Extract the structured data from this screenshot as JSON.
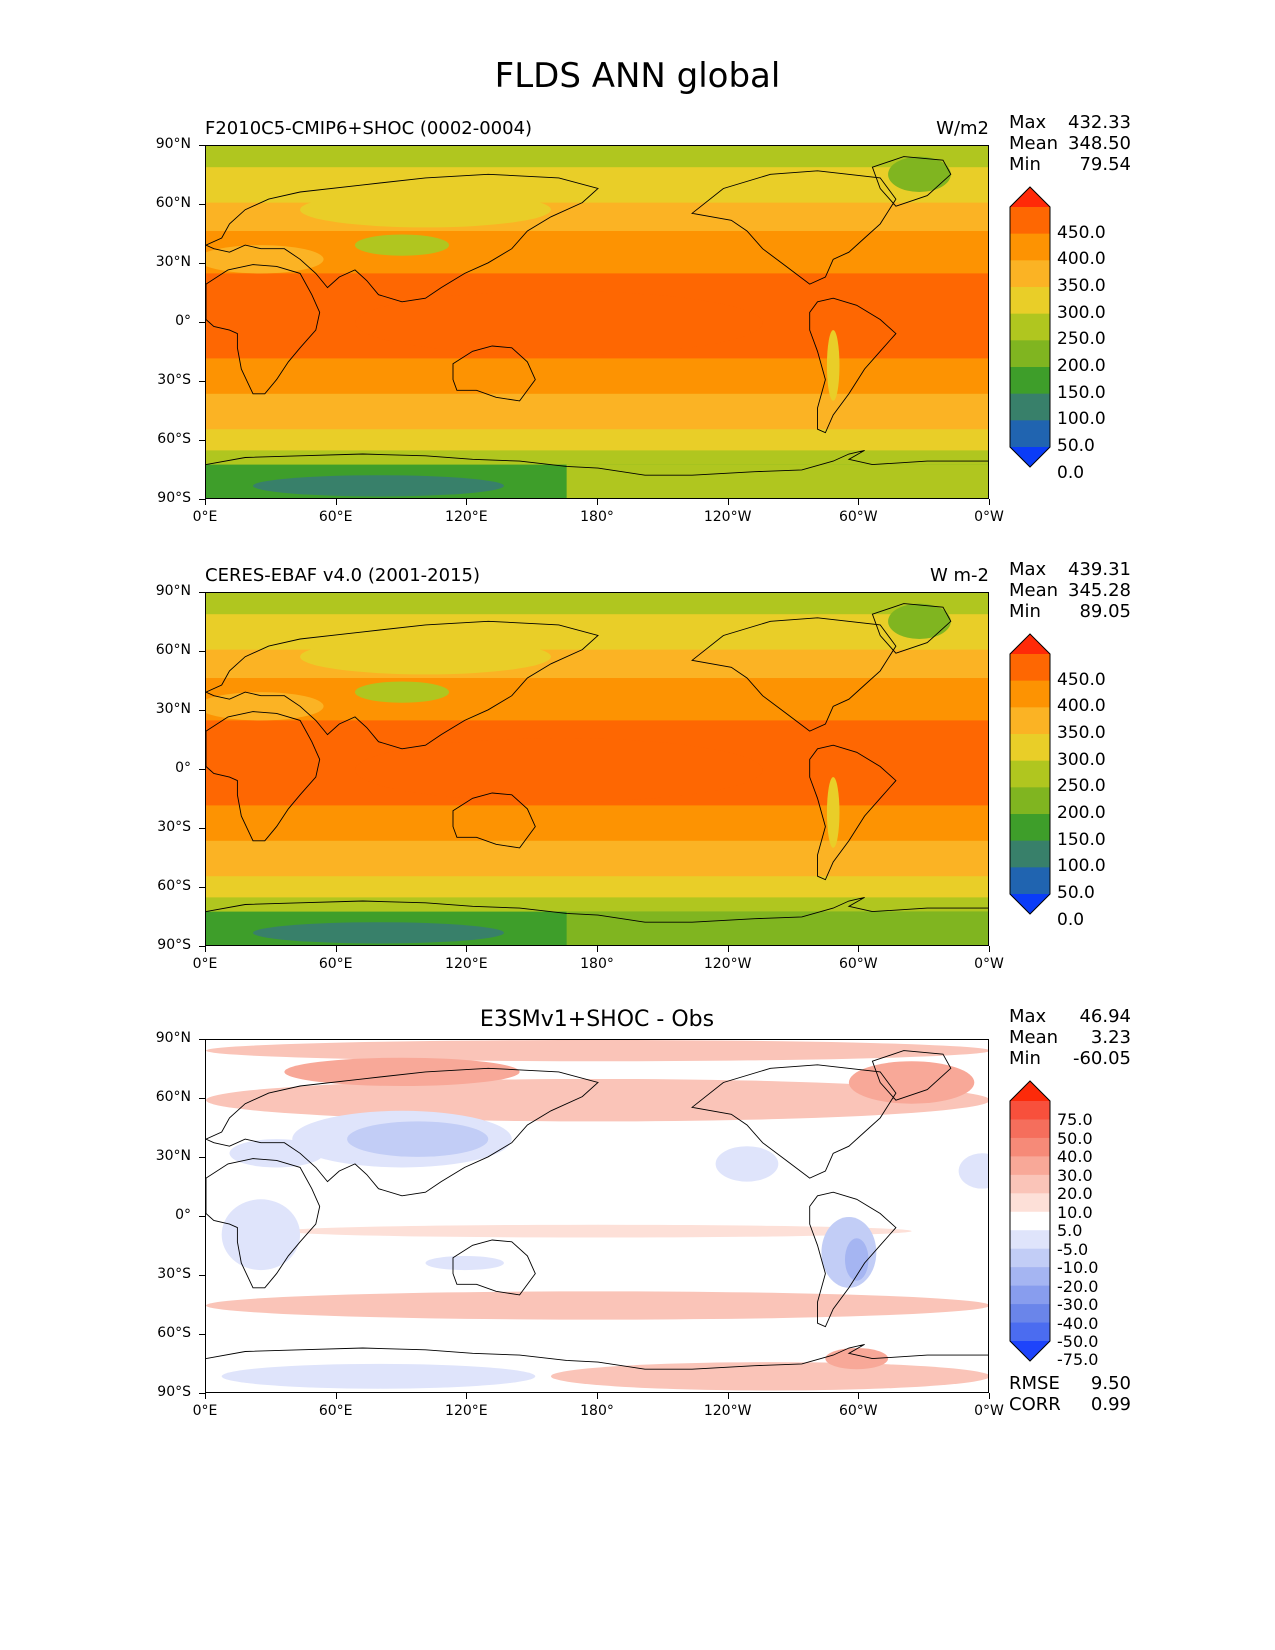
{
  "title": "FLDS ANN global",
  "x_ticks": [
    "0°E",
    "60°E",
    "120°E",
    "180°",
    "120°W",
    "60°W",
    "0°W"
  ],
  "y_ticks": [
    "90°N",
    "60°N",
    "30°N",
    "0°",
    "30°S",
    "60°S",
    "90°S"
  ],
  "panels": [
    {
      "title_left": "F2010C5-CMIP6+SHOC (0002-0004)",
      "units": "W/m2",
      "stats": {
        "max_label": "Max",
        "max": "432.33",
        "mean_label": "Mean",
        "mean": "348.50",
        "min_label": "Min",
        "min": "79.54"
      },
      "colorbar": {
        "labels": [
          "450.0",
          "400.0",
          "350.0",
          "300.0",
          "250.0",
          "200.0",
          "150.0",
          "100.0",
          "50.0",
          "0.0"
        ],
        "colors": [
          "#ff2a08",
          "#fe6702",
          "#fd9302",
          "#fbb324",
          "#e9ce28",
          "#b0c61f",
          "#80b520",
          "#3e9e2a",
          "#38806a",
          "#2064b0",
          "#0a3cf8"
        ]
      }
    },
    {
      "title_left": "CERES-EBAF v4.0 (2001-2015)",
      "units": "W m-2",
      "stats": {
        "max_label": "Max",
        "max": "439.31",
        "mean_label": "Mean",
        "mean": "345.28",
        "min_label": "Min",
        "min": "89.05"
      },
      "colorbar": {
        "labels": [
          "450.0",
          "400.0",
          "350.0",
          "300.0",
          "250.0",
          "200.0",
          "150.0",
          "100.0",
          "50.0",
          "0.0"
        ],
        "colors": [
          "#ff2a08",
          "#fe6702",
          "#fd9302",
          "#fbb324",
          "#e9ce28",
          "#b0c61f",
          "#80b520",
          "#3e9e2a",
          "#38806a",
          "#2064b0",
          "#0a3cf8"
        ]
      }
    },
    {
      "title_center": "E3SMv1+SHOC - Obs",
      "stats": {
        "max_label": "Max",
        "max": "46.94",
        "mean_label": "Mean",
        "mean": "3.23",
        "min_label": "Min",
        "min": "-60.05"
      },
      "colorbar": {
        "labels": [
          "75.0",
          "50.0",
          "40.0",
          "30.0",
          "20.0",
          "10.0",
          "5.0",
          "-5.0",
          "-10.0",
          "-20.0",
          "-30.0",
          "-40.0",
          "-50.0",
          "-75.0"
        ],
        "colors": [
          "#fc2a0a",
          "#f8503c",
          "#f56e5c",
          "#f68a78",
          "#f8a898",
          "#fac4b8",
          "#fde0d8",
          "#ffffff",
          "#dfe4fb",
          "#c2cdf6",
          "#a5b5f2",
          "#889dee",
          "#6a85ea",
          "#4b6cf0",
          "#1e44fb"
        ]
      },
      "rmse_label": "RMSE",
      "rmse": "9.50",
      "corr_label": "CORR",
      "corr": "0.99"
    }
  ]
}
